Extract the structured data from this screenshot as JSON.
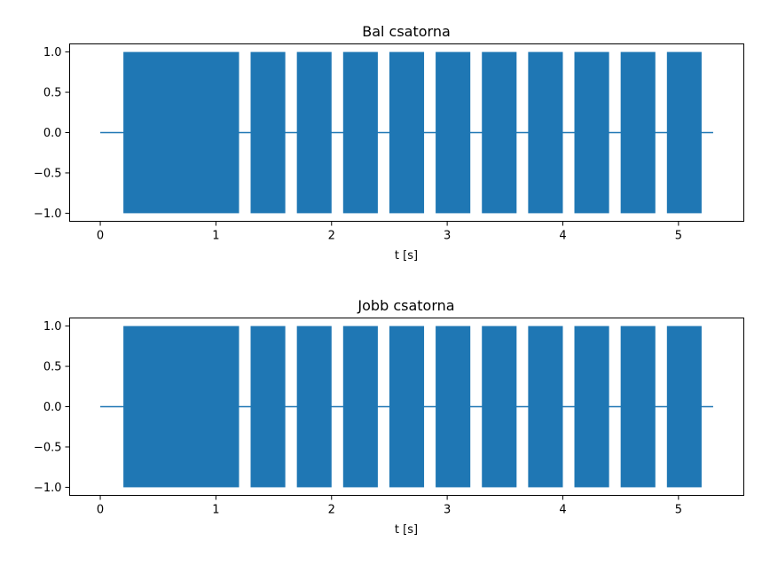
{
  "colors": {
    "series": "#1f77b4",
    "axes": "#000000",
    "background": "#ffffff"
  },
  "chart_data": [
    {
      "type": "line",
      "title": "Bal csatorna",
      "xlabel": "t [s]",
      "ylabel": "",
      "xlim": [
        -0.265,
        5.565
      ],
      "ylim": [
        -1.1,
        1.1
      ],
      "xticks": [
        0,
        1,
        2,
        3,
        4,
        5
      ],
      "xtick_labels": [
        "0",
        "1",
        "2",
        "3",
        "4",
        "5"
      ],
      "yticks": [
        -1.0,
        -0.5,
        0.0,
        0.5,
        1.0
      ],
      "ytick_labels": [
        "−1.0",
        "−0.5",
        "0.0",
        "0.5",
        "1.0"
      ],
      "grid": false,
      "silence_range": [
        0,
        5.3
      ],
      "tone_bursts": [
        {
          "start": 0.2,
          "end": 1.2,
          "amplitude": 1.0
        },
        {
          "start": 1.3,
          "end": 1.6,
          "amplitude": 1.0
        },
        {
          "start": 1.7,
          "end": 2.0,
          "amplitude": 1.0
        },
        {
          "start": 2.1,
          "end": 2.4,
          "amplitude": 1.0
        },
        {
          "start": 2.5,
          "end": 2.8,
          "amplitude": 1.0
        },
        {
          "start": 2.9,
          "end": 3.2,
          "amplitude": 1.0
        },
        {
          "start": 3.3,
          "end": 3.6,
          "amplitude": 1.0
        },
        {
          "start": 3.7,
          "end": 4.0,
          "amplitude": 1.0
        },
        {
          "start": 4.1,
          "end": 4.4,
          "amplitude": 1.0
        },
        {
          "start": 4.5,
          "end": 4.8,
          "amplitude": 1.0
        },
        {
          "start": 4.9,
          "end": 5.2,
          "amplitude": 1.0
        }
      ]
    },
    {
      "type": "line",
      "title": "Jobb csatorna",
      "xlabel": "t [s]",
      "ylabel": "",
      "xlim": [
        -0.265,
        5.565
      ],
      "ylim": [
        -1.1,
        1.1
      ],
      "xticks": [
        0,
        1,
        2,
        3,
        4,
        5
      ],
      "xtick_labels": [
        "0",
        "1",
        "2",
        "3",
        "4",
        "5"
      ],
      "yticks": [
        -1.0,
        -0.5,
        0.0,
        0.5,
        1.0
      ],
      "ytick_labels": [
        "−1.0",
        "−0.5",
        "0.0",
        "0.5",
        "1.0"
      ],
      "grid": false,
      "silence_range": [
        0,
        5.3
      ],
      "tone_bursts": [
        {
          "start": 0.2,
          "end": 1.2,
          "amplitude": 1.0
        },
        {
          "start": 1.3,
          "end": 1.6,
          "amplitude": 1.0
        },
        {
          "start": 1.7,
          "end": 2.0,
          "amplitude": 1.0
        },
        {
          "start": 2.1,
          "end": 2.4,
          "amplitude": 1.0
        },
        {
          "start": 2.5,
          "end": 2.8,
          "amplitude": 1.0
        },
        {
          "start": 2.9,
          "end": 3.2,
          "amplitude": 1.0
        },
        {
          "start": 3.3,
          "end": 3.6,
          "amplitude": 1.0
        },
        {
          "start": 3.7,
          "end": 4.0,
          "amplitude": 1.0
        },
        {
          "start": 4.1,
          "end": 4.4,
          "amplitude": 1.0
        },
        {
          "start": 4.5,
          "end": 4.8,
          "amplitude": 1.0
        },
        {
          "start": 4.9,
          "end": 5.2,
          "amplitude": 1.0
        }
      ]
    }
  ]
}
